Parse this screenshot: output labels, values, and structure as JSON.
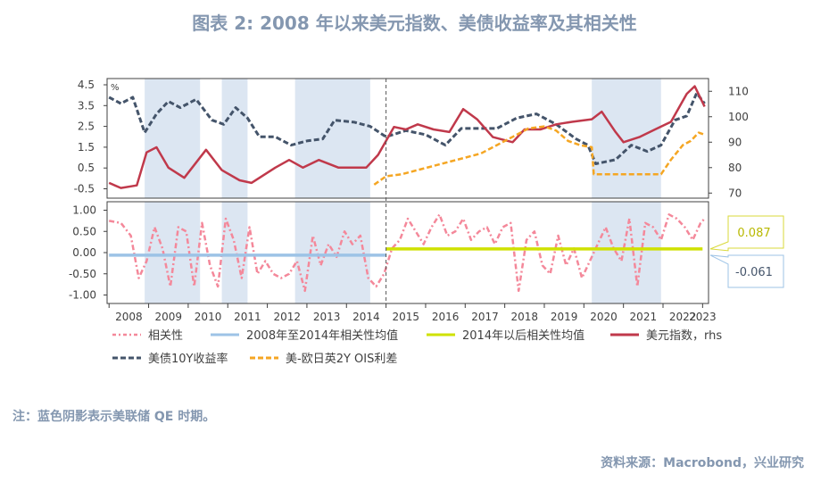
{
  "title": "图表 2:   2008 年以来美元指数、美债收益率及其相关性",
  "note": "注：蓝色阴影表示美联储 QE 时期。",
  "source": "资料来源：Macrobond，兴业研究",
  "colors": {
    "shade": "#dce6f2",
    "corr": "#f4889a",
    "avg_pre": "#9dc3e6",
    "avg_post": "#cfe100",
    "dxy": "#c0394b",
    "ust": "#44546a",
    "ois": "#f5a623",
    "callout_pos_border": "#d9d93a",
    "callout_pos_text": "#b8b800",
    "callout_neg_border": "#9dc3e6",
    "callout_neg_text": "#44546a",
    "axis": "#404040"
  },
  "chart_data": {
    "type": "line",
    "x_unit": "year",
    "xlim": [
      2007.95,
      2023.15
    ],
    "x_ticks": [
      "2008",
      "2009",
      "2010",
      "2011",
      "2012",
      "2013",
      "2014",
      "2015",
      "2016",
      "2017",
      "2018",
      "2019",
      "2020",
      "2021",
      "2022",
      "2023"
    ],
    "shaded_periods": [
      [
        2008.9,
        2010.3
      ],
      [
        2010.85,
        2011.5
      ],
      [
        2012.7,
        2014.6
      ],
      [
        2020.2,
        2021.95
      ]
    ],
    "divider_x": 2015.0,
    "top_panel": {
      "left_axis": {
        "unit_label": "%",
        "ticks": [
          "4.5",
          "3.5",
          "2.5",
          "1.5",
          "0.5",
          "-0.5"
        ],
        "range": [
          -0.95,
          4.8
        ]
      },
      "right_axis": {
        "ticks": [
          "110",
          "100",
          "90",
          "80",
          "70"
        ],
        "range": [
          68,
          115
        ]
      },
      "series": [
        {
          "name": "美债10Y收益率",
          "axis": "left",
          "style": "dashed",
          "x": [
            2008.0,
            2008.3,
            2008.6,
            2008.9,
            2009.2,
            2009.5,
            2009.8,
            2010.2,
            2010.6,
            2010.9,
            2011.2,
            2011.5,
            2011.8,
            2012.2,
            2012.6,
            2013.0,
            2013.4,
            2013.7,
            2014.2,
            2014.6,
            2015.0,
            2015.5,
            2016.0,
            2016.5,
            2016.9,
            2017.3,
            2017.8,
            2018.3,
            2018.8,
            2019.3,
            2019.8,
            2020.1,
            2020.3,
            2020.8,
            2021.2,
            2021.6,
            2021.95,
            2022.3,
            2022.6,
            2022.85,
            2023.05
          ],
          "y": [
            3.9,
            3.6,
            3.9,
            2.2,
            3.1,
            3.7,
            3.4,
            3.8,
            2.8,
            2.6,
            3.4,
            2.9,
            2.0,
            2.0,
            1.6,
            1.8,
            1.9,
            2.8,
            2.7,
            2.5,
            2.0,
            2.3,
            2.1,
            1.6,
            2.4,
            2.4,
            2.4,
            2.9,
            3.1,
            2.6,
            1.9,
            1.6,
            0.7,
            0.9,
            1.6,
            1.3,
            1.6,
            2.8,
            3.0,
            4.1,
            3.6
          ]
        },
        {
          "name": "美元指数，rhs",
          "axis": "right",
          "style": "solid",
          "x": [
            2008.0,
            2008.3,
            2008.7,
            2008.95,
            2009.2,
            2009.5,
            2009.9,
            2010.45,
            2010.85,
            2011.3,
            2011.6,
            2012.2,
            2012.55,
            2012.9,
            2013.3,
            2013.8,
            2014.3,
            2014.5,
            2014.8,
            2015.2,
            2015.5,
            2015.8,
            2016.2,
            2016.6,
            2016.95,
            2017.3,
            2017.7,
            2018.2,
            2018.5,
            2018.9,
            2019.3,
            2019.7,
            2020.2,
            2020.45,
            2020.8,
            2021.0,
            2021.4,
            2021.8,
            2022.2,
            2022.6,
            2022.8,
            2023.05
          ],
          "y": [
            74,
            72,
            73,
            86,
            88,
            80,
            76,
            87,
            79,
            75,
            74,
            80,
            83,
            80,
            83,
            80,
            80,
            80,
            85,
            96,
            95,
            97,
            95,
            94,
            103,
            99,
            92,
            90,
            95,
            95,
            97,
            98,
            99,
            102,
            94,
            90,
            92,
            95,
            98,
            109,
            112,
            104
          ]
        },
        {
          "name": "美-欧日英2Y OIS利差",
          "axis": "left",
          "style": "dashed",
          "x": [
            2014.7,
            2015.0,
            2015.4,
            2015.8,
            2016.2,
            2016.6,
            2017.0,
            2017.4,
            2017.8,
            2018.2,
            2018.6,
            2019.0,
            2019.3,
            2019.6,
            2019.9,
            2020.2,
            2020.25,
            2020.7,
            2021.2,
            2021.7,
            2021.95,
            2022.2,
            2022.5,
            2022.7,
            2022.9,
            2023.05
          ],
          "y": [
            -0.3,
            0.1,
            0.2,
            0.4,
            0.6,
            0.8,
            1.0,
            1.2,
            1.6,
            2.0,
            2.4,
            2.5,
            2.3,
            1.8,
            1.6,
            1.5,
            0.2,
            0.2,
            0.2,
            0.2,
            0.2,
            0.9,
            1.6,
            1.8,
            2.2,
            2.1
          ]
        }
      ]
    },
    "bottom_panel": {
      "axis": {
        "ticks": [
          "1.00",
          "0.50",
          "0.00",
          "-0.50",
          "-1.00"
        ],
        "range": [
          -1.2,
          1.2
        ]
      },
      "series": [
        {
          "name": "相关性",
          "style": "dash-dot",
          "note": "values read approximately from the figure",
          "x": [
            2008.0,
            2008.3,
            2008.55,
            2008.75,
            2008.95,
            2009.15,
            2009.35,
            2009.55,
            2009.75,
            2009.95,
            2010.15,
            2010.35,
            2010.55,
            2010.75,
            2010.95,
            2011.15,
            2011.35,
            2011.55,
            2011.75,
            2011.95,
            2012.15,
            2012.35,
            2012.55,
            2012.75,
            2012.95,
            2013.15,
            2013.35,
            2013.55,
            2013.75,
            2013.95,
            2014.15,
            2014.35,
            2014.55,
            2014.75,
            2014.95,
            2015.15,
            2015.35,
            2015.55,
            2015.75,
            2015.95,
            2016.15,
            2016.35,
            2016.55,
            2016.75,
            2016.95,
            2017.15,
            2017.35,
            2017.55,
            2017.75,
            2017.95,
            2018.15,
            2018.35,
            2018.55,
            2018.75,
            2018.95,
            2019.15,
            2019.35,
            2019.55,
            2019.75,
            2019.95,
            2020.15,
            2020.35,
            2020.55,
            2020.75,
            2020.95,
            2021.15,
            2021.35,
            2021.55,
            2021.75,
            2021.95,
            2022.15,
            2022.35,
            2022.55,
            2022.75,
            2022.95,
            2023.05
          ],
          "y": [
            0.75,
            0.7,
            0.4,
            -0.6,
            -0.2,
            0.6,
            0.1,
            -0.8,
            0.6,
            0.5,
            -0.8,
            0.7,
            -0.3,
            -0.8,
            0.8,
            0.3,
            -0.6,
            0.6,
            -0.5,
            -0.2,
            -0.5,
            -0.6,
            -0.5,
            -0.2,
            -0.9,
            0.4,
            -0.3,
            0.2,
            -0.1,
            0.5,
            0.2,
            0.4,
            -0.6,
            -0.8,
            -0.5,
            0.1,
            0.3,
            0.8,
            0.5,
            0.2,
            0.6,
            0.9,
            0.4,
            0.5,
            0.8,
            0.3,
            0.5,
            0.6,
            0.2,
            0.6,
            0.7,
            -0.9,
            0.3,
            0.5,
            -0.3,
            -0.5,
            0.4,
            -0.3,
            0.1,
            -0.6,
            -0.2,
            0.2,
            0.6,
            0.1,
            -0.2,
            0.8,
            -0.8,
            0.7,
            0.6,
            0.3,
            0.9,
            0.8,
            0.6,
            0.3,
            0.7,
            0.8
          ]
        },
        {
          "name": "2008年至2014年相关性均值",
          "style": "solid",
          "x": [
            2008.0,
            2015.0
          ],
          "y": [
            -0.061,
            -0.061
          ]
        },
        {
          "name": "2014年以后相关性均值",
          "style": "solid",
          "x": [
            2015.0,
            2023.0
          ],
          "y": [
            0.087,
            0.087
          ]
        }
      ],
      "callouts": [
        {
          "label": "0.087",
          "value": 0.087
        },
        {
          "label": "-0.061",
          "value": -0.061
        }
      ]
    },
    "legend": [
      {
        "label": "相关性",
        "key": "corr"
      },
      {
        "label": "2008年至2014年相关性均值",
        "key": "avg_pre"
      },
      {
        "label": "2014年以后相关性均值",
        "key": "avg_post"
      },
      {
        "label": "美元指数，rhs",
        "key": "dxy"
      },
      {
        "label": "美债10Y收益率",
        "key": "ust"
      },
      {
        "label": "美-欧日英2Y OIS利差",
        "key": "ois"
      }
    ]
  }
}
